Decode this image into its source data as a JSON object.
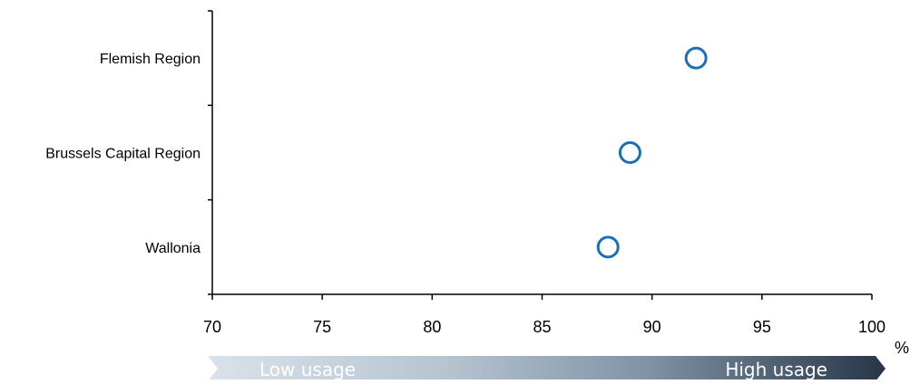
{
  "chart_data": {
    "type": "scatter",
    "categories": [
      "Flemish Region",
      "Brussels Capital Region",
      "Wallonia"
    ],
    "values": [
      92,
      89,
      88
    ],
    "x_ticks": [
      "70",
      "75",
      "80",
      "85",
      "90",
      "95",
      "100"
    ],
    "xlim": [
      70,
      100
    ],
    "x_unit": "%",
    "marker": "open-circle",
    "marker_color": "#1a6fb5",
    "grid": false,
    "legend": "none",
    "usage_scale": {
      "low_label": "Low usage",
      "high_label": "High usage",
      "color_start": "#d9e2ea",
      "color_end": "#273547"
    }
  }
}
